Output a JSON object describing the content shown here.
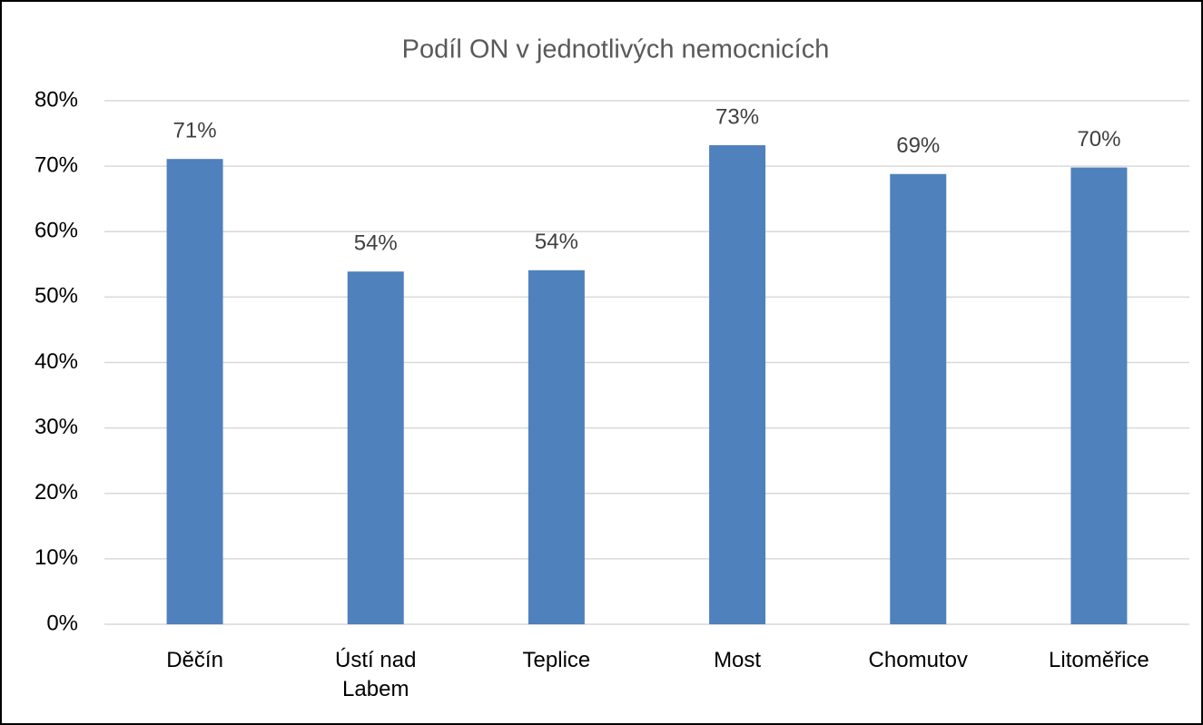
{
  "chart_data": {
    "type": "bar",
    "title": "Podíl ON v jednotlivých nemocnicích",
    "categories": [
      "Děčín",
      "Ústí nad Labem",
      "Teplice",
      "Most",
      "Chomutov",
      "Litoměřice"
    ],
    "values": [
      71.1,
      53.9,
      54.1,
      73.2,
      68.8,
      69.8
    ],
    "value_labels": [
      "71%",
      "54%",
      "54%",
      "73%",
      "69%",
      "70%"
    ],
    "color": "#4f81bd",
    "ylim": [
      0,
      80
    ],
    "yticks": [
      {
        "value": 0,
        "label": "0%"
      },
      {
        "value": 10,
        "label": "10%"
      },
      {
        "value": 20,
        "label": "20%"
      },
      {
        "value": 30,
        "label": "30%"
      },
      {
        "value": 40,
        "label": "40%"
      },
      {
        "value": 50,
        "label": "50%"
      },
      {
        "value": 60,
        "label": "60%"
      },
      {
        "value": 70,
        "label": "70%"
      },
      {
        "value": 80,
        "label": "80%"
      }
    ],
    "grid": true
  }
}
